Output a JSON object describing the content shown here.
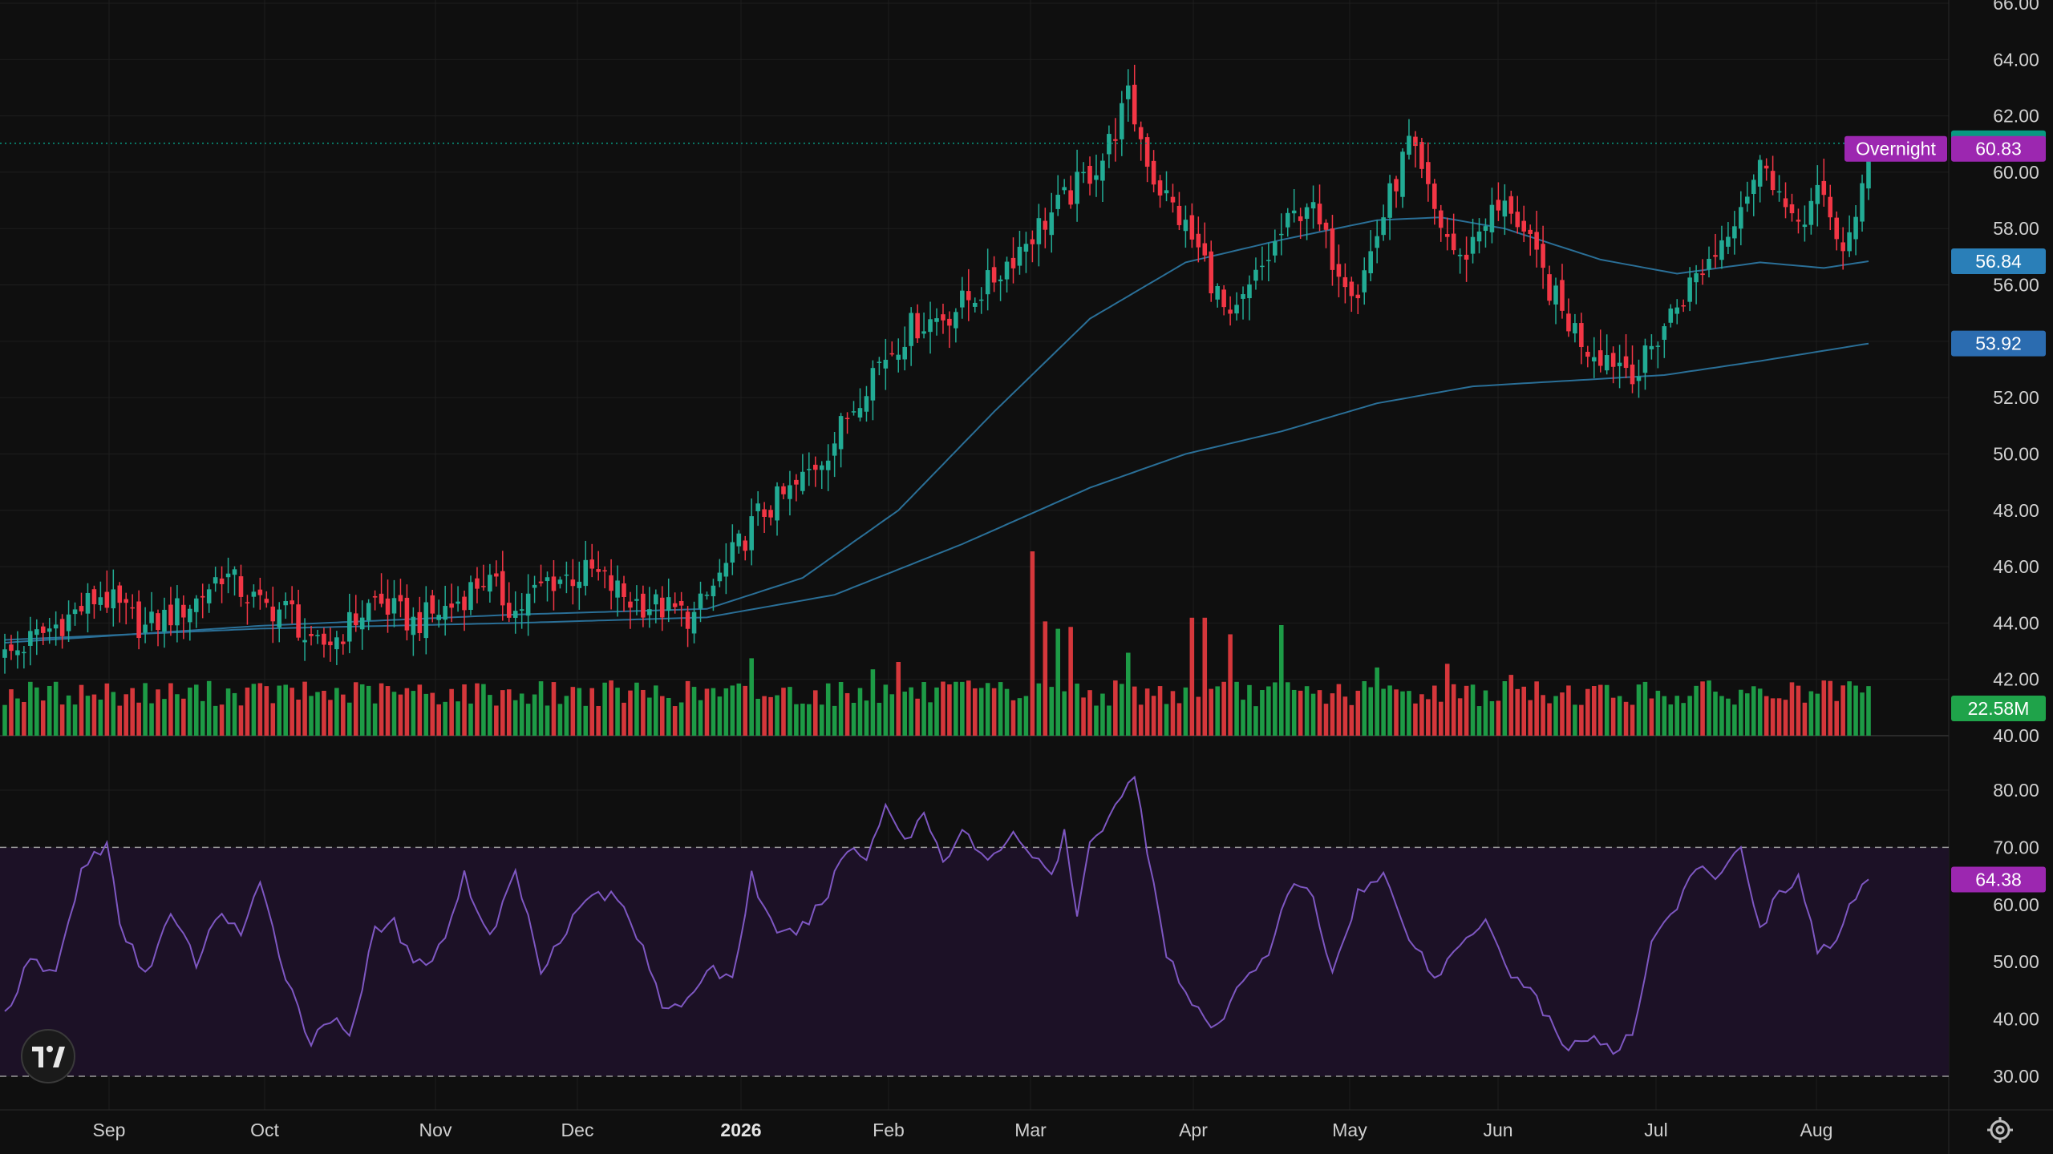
{
  "colors": {
    "background": "#0f0f0f",
    "grid": "#1e1e1e",
    "up": "#22ab94",
    "down": "#f23645",
    "volume_up": "#1fa34a",
    "volume_down": "#e03a3e",
    "ma": "#2a6f97",
    "rsi": "#7e57c2",
    "rsi_band": "#1c1126",
    "last_price": "#089981",
    "overnight": "#9c27b0",
    "ma_tag": "#2a7fb8",
    "ma_tag2": "#2b6cb0",
    "volume_tag": "#1fa34a",
    "rsi_tag": "#9c27b0"
  },
  "chart_data": {
    "type": "candlestick",
    "price_axis": {
      "ticks": [
        "66.00",
        "64.00",
        "62.00",
        "60.00",
        "58.00",
        "56.00",
        "54.00",
        "52.00",
        "50.00",
        "48.00",
        "46.00",
        "44.00",
        "42.00",
        "40.00"
      ],
      "range": [
        40,
        66
      ]
    },
    "time_axis": {
      "labels": [
        "Sep",
        "Oct",
        "Nov",
        "Dec",
        "2026",
        "Feb",
        "Mar",
        "Apr",
        "May",
        "Jun",
        "Jul",
        "Aug"
      ],
      "bold": [
        "2026"
      ]
    },
    "price_anchors": [
      [
        0,
        42.8
      ],
      [
        10,
        44.2
      ],
      [
        15,
        45.0
      ],
      [
        22,
        43.8
      ],
      [
        30,
        44.8
      ],
      [
        34,
        45.8
      ],
      [
        40,
        44.6
      ],
      [
        45,
        44.4
      ],
      [
        48,
        43.0
      ],
      [
        52,
        43.5
      ],
      [
        58,
        44.8
      ],
      [
        64,
        44.0
      ],
      [
        70,
        44.6
      ],
      [
        75,
        45.6
      ],
      [
        80,
        44.4
      ],
      [
        85,
        45.5
      ],
      [
        92,
        45.8
      ],
      [
        98,
        44.8
      ],
      [
        102,
        44.6
      ],
      [
        108,
        44.2
      ],
      [
        113,
        46.0
      ],
      [
        118,
        47.8
      ],
      [
        124,
        48.8
      ],
      [
        130,
        50.5
      ],
      [
        136,
        53.0
      ],
      [
        142,
        54.5
      ],
      [
        148,
        55.0
      ],
      [
        154,
        56.0
      ],
      [
        160,
        57.6
      ],
      [
        166,
        59.0
      ],
      [
        172,
        60.5
      ],
      [
        176,
        62.6
      ],
      [
        180,
        59.8
      ],
      [
        184,
        58.4
      ],
      [
        188,
        56.8
      ],
      [
        192,
        54.5
      ],
      [
        196,
        56.2
      ],
      [
        200,
        57.8
      ],
      [
        204,
        59.0
      ],
      [
        208,
        57.0
      ],
      [
        212,
        55.8
      ],
      [
        216,
        58.5
      ],
      [
        220,
        61.0
      ],
      [
        224,
        58.6
      ],
      [
        228,
        56.8
      ],
      [
        232,
        58.4
      ],
      [
        236,
        58.8
      ],
      [
        240,
        56.8
      ],
      [
        244,
        55.0
      ],
      [
        248,
        53.8
      ],
      [
        252,
        53.4
      ],
      [
        256,
        52.9
      ],
      [
        260,
        54.6
      ],
      [
        264,
        56.0
      ],
      [
        268,
        57.2
      ],
      [
        272,
        59.0
      ],
      [
        276,
        60.5
      ],
      [
        280,
        58.0
      ],
      [
        284,
        59.2
      ],
      [
        288,
        57.4
      ],
      [
        290,
        58.0
      ],
      [
        292,
        61.0
      ]
    ],
    "ma_short": {
      "name": "",
      "last_value": "56.84",
      "anchors": [
        [
          0,
          43.3
        ],
        [
          40,
          43.9
        ],
        [
          80,
          44.3
        ],
        [
          110,
          44.5
        ],
        [
          125,
          45.6
        ],
        [
          140,
          48.0
        ],
        [
          155,
          51.5
        ],
        [
          170,
          54.8
        ],
        [
          185,
          56.8
        ],
        [
          200,
          57.6
        ],
        [
          215,
          58.3
        ],
        [
          225,
          58.4
        ],
        [
          235,
          58.0
        ],
        [
          250,
          56.9
        ],
        [
          262,
          56.4
        ],
        [
          275,
          56.8
        ],
        [
          285,
          56.6
        ],
        [
          292,
          56.84
        ]
      ]
    },
    "ma_long": {
      "name": "",
      "last_value": "53.92",
      "anchors": [
        [
          0,
          43.4
        ],
        [
          40,
          43.8
        ],
        [
          80,
          44.0
        ],
        [
          110,
          44.2
        ],
        [
          130,
          45.0
        ],
        [
          150,
          46.8
        ],
        [
          170,
          48.8
        ],
        [
          185,
          50.0
        ],
        [
          200,
          50.8
        ],
        [
          215,
          51.8
        ],
        [
          230,
          52.4
        ],
        [
          245,
          52.6
        ],
        [
          260,
          52.8
        ],
        [
          275,
          53.3
        ],
        [
          292,
          53.92
        ]
      ]
    },
    "volume": {
      "last_value": "22.58M",
      "baseline_ratio": 0.16,
      "spikes": [
        [
          117,
          0.42
        ],
        [
          136,
          0.36
        ],
        [
          140,
          0.4
        ],
        [
          161,
          1.0
        ],
        [
          163,
          0.62
        ],
        [
          165,
          0.58
        ],
        [
          167,
          0.59
        ],
        [
          176,
          0.45
        ],
        [
          186,
          0.64
        ],
        [
          188,
          0.64
        ],
        [
          192,
          0.55
        ],
        [
          200,
          0.6
        ],
        [
          215,
          0.37
        ],
        [
          226,
          0.39
        ],
        [
          236,
          0.33
        ]
      ]
    },
    "rsi": {
      "last_value": "64.38",
      "ticks": [
        "80.00",
        "70.00",
        "60.00",
        "50.00",
        "40.00",
        "30.00"
      ],
      "range": [
        25,
        85
      ],
      "band": [
        30,
        70
      ],
      "anchors": [
        [
          0,
          41
        ],
        [
          4,
          50
        ],
        [
          8,
          48
        ],
        [
          12,
          66
        ],
        [
          16,
          71
        ],
        [
          18,
          56
        ],
        [
          22,
          48
        ],
        [
          26,
          58
        ],
        [
          30,
          50
        ],
        [
          34,
          59
        ],
        [
          37,
          55
        ],
        [
          40,
          63
        ],
        [
          44,
          48
        ],
        [
          48,
          36
        ],
        [
          52,
          41
        ],
        [
          54,
          37
        ],
        [
          58,
          55
        ],
        [
          61,
          57
        ],
        [
          64,
          49
        ],
        [
          68,
          52
        ],
        [
          72,
          65
        ],
        [
          76,
          54
        ],
        [
          80,
          66
        ],
        [
          84,
          49
        ],
        [
          88,
          56
        ],
        [
          92,
          62
        ],
        [
          96,
          61
        ],
        [
          100,
          53
        ],
        [
          103,
          43
        ],
        [
          106,
          41
        ],
        [
          110,
          49
        ],
        [
          114,
          47
        ],
        [
          117,
          65
        ],
        [
          121,
          54
        ],
        [
          125,
          56
        ],
        [
          128,
          60
        ],
        [
          132,
          70
        ],
        [
          135,
          68
        ],
        [
          138,
          78
        ],
        [
          141,
          71
        ],
        [
          144,
          76
        ],
        [
          147,
          68
        ],
        [
          150,
          73
        ],
        [
          154,
          67
        ],
        [
          158,
          73
        ],
        [
          162,
          67
        ],
        [
          164,
          65
        ],
        [
          166,
          72
        ],
        [
          168,
          58
        ],
        [
          170,
          70
        ],
        [
          174,
          78
        ],
        [
          177,
          82
        ],
        [
          180,
          64
        ],
        [
          182,
          52
        ],
        [
          186,
          42
        ],
        [
          190,
          38
        ],
        [
          194,
          47
        ],
        [
          198,
          52
        ],
        [
          202,
          64
        ],
        [
          205,
          61
        ],
        [
          208,
          48
        ],
        [
          212,
          62
        ],
        [
          216,
          65
        ],
        [
          220,
          55
        ],
        [
          224,
          47
        ],
        [
          228,
          53
        ],
        [
          232,
          58
        ],
        [
          236,
          48
        ],
        [
          240,
          44
        ],
        [
          244,
          35
        ],
        [
          248,
          37
        ],
        [
          252,
          34
        ],
        [
          255,
          37
        ],
        [
          258,
          54
        ],
        [
          262,
          60
        ],
        [
          265,
          66
        ],
        [
          269,
          65
        ],
        [
          272,
          70
        ],
        [
          275,
          56
        ],
        [
          278,
          62
        ],
        [
          281,
          65
        ],
        [
          284,
          52
        ],
        [
          287,
          53
        ],
        [
          290,
          62
        ],
        [
          292,
          64.4
        ]
      ]
    },
    "tags": {
      "last_price": "61.03",
      "overnight_label": "Overnight",
      "overnight_price": "60.83"
    }
  }
}
